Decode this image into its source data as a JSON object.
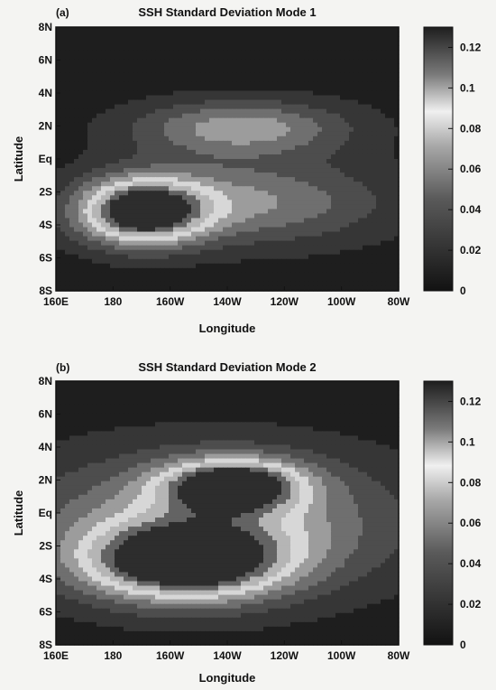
{
  "colors": {
    "low": "#1a1a1a",
    "high": "#fafafa",
    "background": "#f4f4f2"
  },
  "chart_data": [
    {
      "type": "heatmap",
      "panel_label": "(a)",
      "title": "SSH Standard Deviation Mode 1",
      "xlabel": "Longitude",
      "ylabel": "Latitude",
      "xlim": [
        160,
        280
      ],
      "ylim": [
        -8,
        8
      ],
      "x_ticks": [
        {
          "value": 160,
          "label": "160E"
        },
        {
          "value": 180,
          "label": "180"
        },
        {
          "value": 200,
          "label": "160W"
        },
        {
          "value": 220,
          "label": "140W"
        },
        {
          "value": 240,
          "label": "120W"
        },
        {
          "value": 260,
          "label": "100W"
        },
        {
          "value": 280,
          "label": "80W"
        }
      ],
      "y_ticks": [
        {
          "value": 8,
          "label": "8N"
        },
        {
          "value": 6,
          "label": "6N"
        },
        {
          "value": 4,
          "label": "4N"
        },
        {
          "value": 2,
          "label": "2N"
        },
        {
          "value": 0,
          "label": "Eq"
        },
        {
          "value": -2,
          "label": "2S"
        },
        {
          "value": -4,
          "label": "4S"
        },
        {
          "value": -6,
          "label": "6S"
        },
        {
          "value": -8,
          "label": "8S"
        }
      ],
      "colorbar": {
        "range": [
          0,
          0.13
        ],
        "ticks": [
          {
            "value": 0,
            "label": "0"
          },
          {
            "value": 0.02,
            "label": "0.02"
          },
          {
            "value": 0.04,
            "label": "0.04"
          },
          {
            "value": 0.06,
            "label": "0.06"
          },
          {
            "value": 0.08,
            "label": "0.08"
          },
          {
            "value": 0.1,
            "label": "0.1"
          },
          {
            "value": 0.12,
            "label": "0.12"
          }
        ]
      },
      "contour_levels": [
        0.015,
        0.03,
        0.045,
        0.06,
        0.075,
        0.09,
        0.105,
        0.12
      ],
      "features": [
        {
          "name": "south-maximum",
          "lon_center": 190,
          "lat_center": -3.2,
          "lon_halfwidth": 22,
          "lat_halfwidth": 2.0,
          "peak": 0.128
        },
        {
          "name": "south-tongue",
          "lon_center": 228,
          "lat_center": -2.6,
          "lon_halfwidth": 48,
          "lat_halfwidth": 2.6,
          "peak": 0.055
        },
        {
          "name": "north-band",
          "lon_center": 225,
          "lat_center": 1.9,
          "lon_halfwidth": 38,
          "lat_halfwidth": 1.7,
          "peak": 0.062
        }
      ]
    },
    {
      "type": "heatmap",
      "panel_label": "(b)",
      "title": "SSH Standard Deviation Mode 2",
      "xlabel": "Longitude",
      "ylabel": "Latitude",
      "xlim": [
        160,
        280
      ],
      "ylim": [
        -8,
        8
      ],
      "x_ticks": [
        {
          "value": 160,
          "label": "160E"
        },
        {
          "value": 180,
          "label": "180"
        },
        {
          "value": 200,
          "label": "160W"
        },
        {
          "value": 220,
          "label": "140W"
        },
        {
          "value": 240,
          "label": "120W"
        },
        {
          "value": 260,
          "label": "100W"
        },
        {
          "value": 280,
          "label": "80W"
        }
      ],
      "y_ticks": [
        {
          "value": 8,
          "label": "8N"
        },
        {
          "value": 6,
          "label": "6N"
        },
        {
          "value": 4,
          "label": "4N"
        },
        {
          "value": 2,
          "label": "2N"
        },
        {
          "value": 0,
          "label": "Eq"
        },
        {
          "value": -2,
          "label": "2S"
        },
        {
          "value": -4,
          "label": "4S"
        },
        {
          "value": -6,
          "label": "6S"
        },
        {
          "value": -8,
          "label": "8S"
        }
      ],
      "colorbar": {
        "range": [
          0,
          0.13
        ],
        "ticks": [
          {
            "value": 0,
            "label": "0"
          },
          {
            "value": 0.02,
            "label": "0.02"
          },
          {
            "value": 0.04,
            "label": "0.04"
          },
          {
            "value": 0.06,
            "label": "0.06"
          },
          {
            "value": 0.08,
            "label": "0.08"
          },
          {
            "value": 0.1,
            "label": "0.1"
          },
          {
            "value": 0.12,
            "label": "0.12"
          }
        ]
      },
      "contour_levels": [
        0.015,
        0.03,
        0.045,
        0.06,
        0.075,
        0.09,
        0.105,
        0.12
      ],
      "features": [
        {
          "name": "south-maximum",
          "lon_center": 205,
          "lat_center": -3.0,
          "lon_halfwidth": 35,
          "lat_halfwidth": 2.3,
          "peak": 0.125
        },
        {
          "name": "north-maximum",
          "lon_center": 222,
          "lat_center": 1.7,
          "lon_halfwidth": 23,
          "lat_halfwidth": 1.5,
          "peak": 0.118
        },
        {
          "name": "broad-band",
          "lon_center": 215,
          "lat_center": -0.5,
          "lon_halfwidth": 65,
          "lat_halfwidth": 4.2,
          "peak": 0.07
        }
      ]
    }
  ]
}
